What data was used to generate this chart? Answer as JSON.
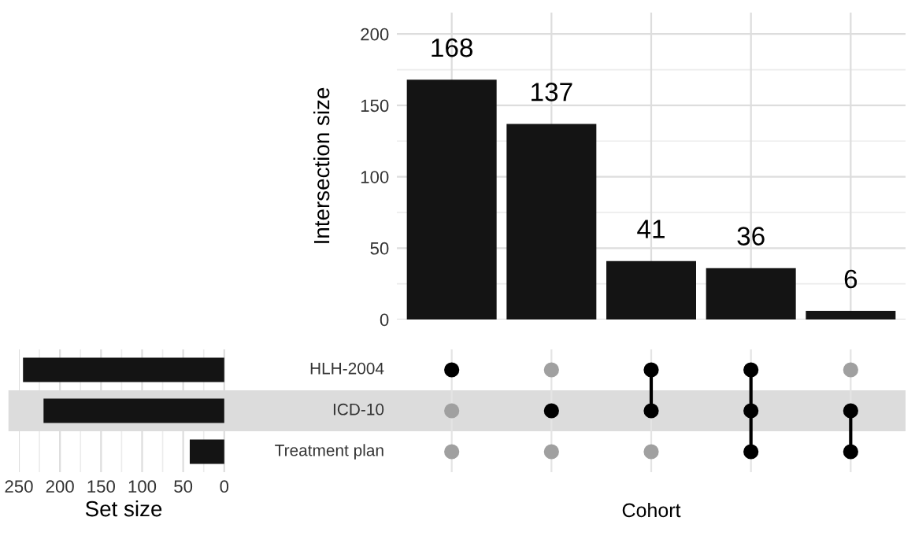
{
  "chart_data": [
    {
      "type": "bar",
      "ylabel": "Intersection size",
      "xlabel": "Cohort",
      "categories": [
        null,
        null,
        null,
        null,
        null
      ],
      "values": [
        168,
        137,
        41,
        36,
        6
      ],
      "color": "#141414",
      "data_labels": true,
      "ylim": [
        0,
        215
      ],
      "yticks": [
        0,
        50,
        100,
        150,
        200
      ],
      "grid": true
    },
    {
      "type": "bar",
      "orientation": "horizontal",
      "xlabel": "Set size",
      "categories": [
        "HLH-2004",
        "ICD-10",
        "Treatment plan"
      ],
      "values": [
        245,
        220,
        42
      ],
      "color": "#141414",
      "bands": [
        {
          "axis": "y",
          "from": "ICD-10",
          "to": "ICD-10",
          "color": "#dcdcdc"
        }
      ],
      "xlim": [
        250,
        -5
      ],
      "xticks": [
        250,
        200,
        150,
        100,
        50,
        0
      ],
      "grid": "x"
    }
  ]
}
